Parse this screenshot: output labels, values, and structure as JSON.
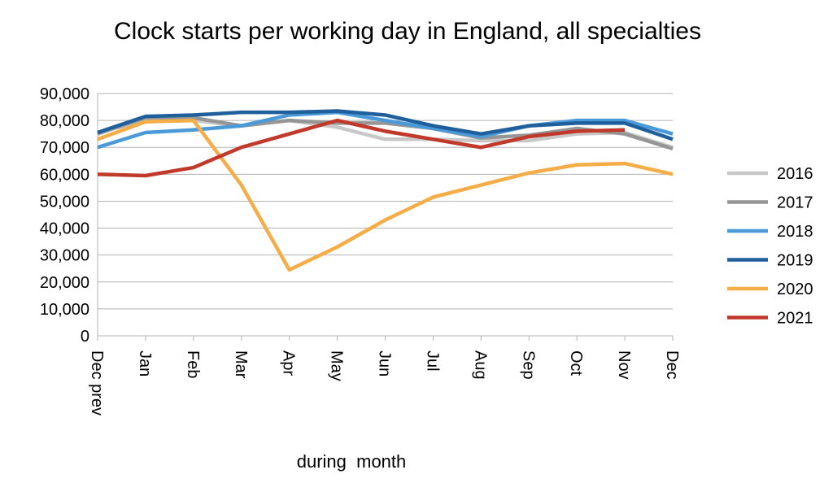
{
  "chart_data": {
    "type": "line",
    "title": "Clock starts per working day in England, all specialties",
    "xlabel": "during  month",
    "ylabel": "",
    "ylim": [
      0,
      90000
    ],
    "yticks": [
      0,
      10000,
      20000,
      30000,
      40000,
      50000,
      60000,
      70000,
      80000,
      90000
    ],
    "ytick_labels": [
      "0",
      "10,000",
      "20,000",
      "30,000",
      "40,000",
      "50,000",
      "60,000",
      "70,000",
      "80,000",
      "90,000"
    ],
    "categories": [
      "Dec prev",
      "Jan",
      "Feb",
      "Mar",
      "Apr",
      "May",
      "Jun",
      "Jul",
      "Aug",
      "Sep",
      "Oct",
      "Nov",
      "Dec"
    ],
    "grid": true,
    "legend_position": "right",
    "series": [
      {
        "name": "2016",
        "color": "#c8c8c8",
        "values": [
          75500,
          80000,
          80000,
          78000,
          80000,
          77500,
          73000,
          73000,
          72500,
          72500,
          75000,
          75500,
          70000
        ]
      },
      {
        "name": "2017",
        "color": "#969696",
        "values": [
          75000,
          81000,
          81000,
          78000,
          80000,
          79000,
          79000,
          77000,
          73500,
          74500,
          77000,
          75000,
          69500
        ]
      },
      {
        "name": "2018",
        "color": "#4a9ad9",
        "values": [
          70000,
          75500,
          76500,
          78000,
          82000,
          83000,
          80000,
          77000,
          74000,
          78000,
          80000,
          80000,
          75000
        ]
      },
      {
        "name": "2019",
        "color": "#1f5f9c",
        "values": [
          75500,
          81500,
          82000,
          83000,
          83000,
          83500,
          82000,
          78000,
          75000,
          78000,
          79000,
          79000,
          73000
        ]
      },
      {
        "name": "2020",
        "color": "#f5ad47",
        "values": [
          73000,
          79500,
          80000,
          56000,
          24500,
          33000,
          43000,
          51500,
          56000,
          60500,
          63500,
          64000,
          60000
        ]
      },
      {
        "name": "2021",
        "color": "#c0392b",
        "values": [
          60000,
          59500,
          62500,
          70000,
          75000,
          80000,
          76000,
          73000,
          70000,
          74000,
          76000,
          76500,
          null
        ]
      }
    ]
  }
}
